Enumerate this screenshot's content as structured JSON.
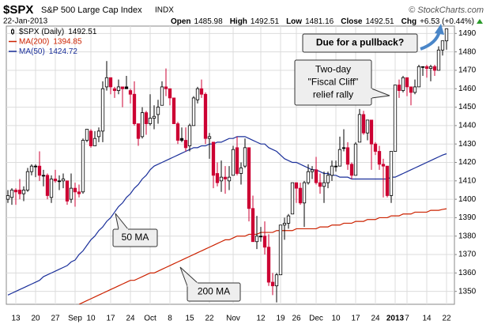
{
  "chart_data": {
    "type": "candlestick",
    "title": "$SPX",
    "subtitle": "S&P 500 Large Cap Index",
    "exchange": "INDX",
    "source": "© StockCharts.com",
    "date": "22-Jan-2013",
    "stats": [
      {
        "label": "Open",
        "value": 1485.98
      },
      {
        "label": "High",
        "value": 1492.51
      },
      {
        "label": "Low",
        "value": 1481.16
      },
      {
        "label": "Close",
        "value": 1492.51
      },
      {
        "label": "Chg",
        "value": "+6.53 (+0.44%)"
      }
    ],
    "up_color": "#000000",
    "down_color": "#cc0033",
    "grid": true,
    "ylim": [
      1343,
      1494
    ],
    "yticks": [
      1350,
      1360,
      1370,
      1380,
      1390,
      1400,
      1410,
      1420,
      1430,
      1440,
      1450,
      1460,
      1470,
      1480,
      1490
    ],
    "categories": [
      null,
      null,
      "13",
      null,
      null,
      null,
      null,
      "20",
      null,
      null,
      null,
      null,
      "27",
      null,
      null,
      null,
      null,
      "Sep",
      null,
      null,
      null,
      "10",
      null,
      null,
      null,
      null,
      "17",
      null,
      null,
      null,
      null,
      "24",
      null,
      null,
      null,
      null,
      "Oct",
      null,
      null,
      null,
      null,
      "8",
      null,
      null,
      null,
      null,
      "15",
      null,
      null,
      null,
      null,
      "22",
      null,
      null,
      null,
      null,
      null,
      "Nov",
      null,
      null,
      null,
      null,
      null,
      null,
      "12",
      null,
      null,
      null,
      null,
      "19",
      null,
      null,
      null,
      "26",
      null,
      null,
      null,
      null,
      "Dec",
      null,
      null,
      null,
      null,
      "10",
      null,
      null,
      null,
      null,
      "17",
      null,
      null,
      null,
      null,
      "24",
      null,
      null,
      null,
      null,
      "2013",
      null,
      null,
      "7",
      null,
      null,
      null,
      null,
      "14",
      null,
      null,
      null,
      null,
      "22"
    ],
    "series": [
      {
        "name": "$SPX (Daily)",
        "last": 1492.51,
        "open": [
          1400,
          1401,
          1405,
          1405,
          1403,
          1405,
          1415,
          1418,
          1418,
          1413,
          1413,
          1401,
          1411,
          1410,
          1410,
          1410,
          1400,
          1406,
          1404,
          1404,
          1432,
          1437,
          1429,
          1434,
          1437,
          1461,
          1466,
          1460,
          1459,
          1461,
          1461,
          1459,
          1457,
          1441,
          1434,
          1447,
          1441,
          1444,
          1446,
          1451,
          1461,
          1460,
          1455,
          1441,
          1433,
          1432,
          1429,
          1440,
          1454,
          1460,
          1457,
          1433,
          1431,
          1414,
          1410,
          1412,
          1410,
          1413,
          1428,
          1414,
          1418,
          1428,
          1395,
          1377,
          1380,
          1380,
          1374,
          1355,
          1353,
          1359,
          1386,
          1387,
          1392,
          1409,
          1406,
          1398,
          1409,
          1415,
          1416,
          1409,
          1407,
          1409,
          1413,
          1418,
          1418,
          1428,
          1428,
          1419,
          1413,
          1431,
          1446,
          1436,
          1443,
          1430,
          1426,
          1419,
          1418,
          1402,
          1426,
          1462,
          1459,
          1466,
          1461,
          1458,
          1461,
          1472,
          1472,
          1471,
          1472,
          1470,
          1481,
          1485.98
        ],
        "high": [
          1405,
          1406,
          1406,
          1411,
          1407,
          1417,
          1419,
          1419,
          1426,
          1416,
          1414,
          1413,
          1416,
          1413,
          1414,
          1410,
          1414,
          1409,
          1408,
          1433,
          1438,
          1438,
          1437,
          1439,
          1464,
          1475,
          1466,
          1461,
          1465,
          1461,
          1467,
          1460,
          1464,
          1441,
          1450,
          1448,
          1457,
          1451,
          1454,
          1464,
          1471,
          1460,
          1455,
          1442,
          1439,
          1439,
          1441,
          1456,
          1461,
          1465,
          1458,
          1436,
          1431,
          1420,
          1421,
          1418,
          1418,
          1429,
          1434,
          1420,
          1433,
          1428,
          1402,
          1391,
          1385,
          1388,
          1381,
          1360,
          1360,
          1386,
          1390,
          1392,
          1409,
          1409,
          1409,
          1410,
          1419,
          1418,
          1423,
          1414,
          1415,
          1415,
          1421,
          1421,
          1434,
          1438,
          1431,
          1420,
          1431,
          1449,
          1448,
          1443,
          1443,
          1431,
          1429,
          1422,
          1418,
          1426,
          1462,
          1465,
          1467,
          1466,
          1461,
          1465,
          1473,
          1472,
          1473,
          1473,
          1473,
          1483,
          1486,
          1492.51
        ],
        "low": [
          1398,
          1397,
          1397,
          1400,
          1399,
          1404,
          1413,
          1412,
          1410,
          1407,
          1400,
          1398,
          1409,
          1405,
          1406,
          1397,
          1398,
          1396,
          1401,
          1403,
          1431,
          1428,
          1429,
          1431,
          1431,
          1459,
          1457,
          1455,
          1457,
          1450,
          1460,
          1452,
          1440,
          1429,
          1433,
          1435,
          1440,
          1438,
          1441,
          1451,
          1456,
          1451,
          1441,
          1430,
          1431,
          1426,
          1426,
          1440,
          1452,
          1455,
          1430,
          1422,
          1406,
          1407,
          1404,
          1403,
          1405,
          1413,
          1413,
          1408,
          1417,
          1388,
          1377,
          1373,
          1377,
          1370,
          1353,
          1348,
          1344,
          1359,
          1378,
          1384,
          1392,
          1398,
          1397,
          1385,
          1408,
          1411,
          1408,
          1403,
          1398,
          1406,
          1410,
          1415,
          1418,
          1426,
          1416,
          1411,
          1413,
          1431,
          1435,
          1432,
          1416,
          1424,
          1416,
          1401,
          1401,
          1398,
          1426,
          1455,
          1458,
          1456,
          1451,
          1457,
          1461,
          1467,
          1466,
          1464,
          1467,
          1470,
          1478,
          1481.16
        ],
        "close": [
          1402,
          1405,
          1404,
          1403,
          1405,
          1415,
          1418,
          1418,
          1413,
          1413,
          1402,
          1411,
          1410,
          1410,
          1411,
          1399,
          1406,
          1404,
          1403,
          1432,
          1438,
          1429,
          1433,
          1437,
          1460,
          1466,
          1461,
          1459,
          1461,
          1460,
          1460,
          1457,
          1441,
          1433,
          1447,
          1441,
          1444,
          1445,
          1450,
          1461,
          1460,
          1455,
          1441,
          1432,
          1432,
          1428,
          1440,
          1455,
          1460,
          1457,
          1433,
          1434,
          1413,
          1409,
          1412,
          1411,
          1412,
          1427,
          1414,
          1417,
          1428,
          1395,
          1377,
          1380,
          1380,
          1374,
          1355,
          1353,
          1359,
          1386,
          1387,
          1391,
          1409,
          1406,
          1398,
          1409,
          1415,
          1416,
          1409,
          1407,
          1409,
          1413,
          1418,
          1418,
          1427,
          1428,
          1419,
          1413,
          1430,
          1446,
          1436,
          1443,
          1430,
          1426,
          1419,
          1418,
          1402,
          1426,
          1462,
          1459,
          1466,
          1461,
          1458,
          1461,
          1472,
          1472,
          1471,
          1472,
          1470,
          1481,
          1486,
          1492.51
        ]
      },
      {
        "name": "MA(200)",
        "last": 1394.85,
        "color": "#cc2200",
        "values": [
          null,
          null,
          null,
          null,
          null,
          null,
          null,
          null,
          null,
          null,
          null,
          null,
          null,
          null,
          null,
          null,
          null,
          null,
          1343,
          1344,
          1345,
          1346,
          1347,
          1348,
          1349,
          1350,
          1351,
          1352,
          1353,
          1354,
          1355,
          1356,
          1356,
          1357,
          1358,
          1359,
          1360,
          1360,
          1361,
          1362,
          1363,
          1364,
          1365,
          1366,
          1367,
          1368,
          1369,
          1370,
          1371,
          1372,
          1373,
          1374,
          1375,
          1376,
          1377,
          1378,
          1378,
          1379,
          1380,
          1380,
          1380,
          1381,
          1381,
          1381,
          1382,
          1382,
          1382,
          1382,
          1383,
          1383,
          1383,
          1383,
          1383,
          1384,
          1384,
          1384,
          1384,
          1384,
          1384,
          1385,
          1385,
          1385,
          1386,
          1386,
          1386,
          1387,
          1387,
          1387,
          1388,
          1388,
          1388,
          1389,
          1389,
          1389,
          1390,
          1390,
          1390,
          1391,
          1391,
          1391,
          1392,
          1392,
          1392,
          1393,
          1393,
          1393,
          1393,
          1394,
          1394,
          1394,
          1394.5,
          1394.85
        ]
      },
      {
        "name": "MA(50)",
        "last": 1424.72,
        "color": "#1a2f9a",
        "values": [
          1348,
          1349,
          1350,
          1351,
          1352,
          1353,
          1354,
          1355,
          1356,
          1358,
          1359,
          1360,
          1361,
          1362,
          1363,
          1364,
          1366,
          1367,
          1370,
          1372,
          1375,
          1378,
          1380,
          1383,
          1385,
          1388,
          1390,
          1393,
          1396,
          1398,
          1401,
          1403,
          1406,
          1408,
          1411,
          1413,
          1416,
          1418,
          1419,
          1420,
          1421,
          1422,
          1423,
          1424,
          1425,
          1426,
          1427,
          1428,
          1428,
          1429,
          1429,
          1430,
          1430,
          1431,
          1431,
          1432,
          1433,
          1433,
          1434,
          1434,
          1434,
          1433,
          1432,
          1431,
          1430,
          1430,
          1428,
          1427,
          1426,
          1424,
          1422,
          1421,
          1420,
          1420,
          1419,
          1418,
          1417,
          1416,
          1416,
          1415,
          1414,
          1414,
          1413,
          1413,
          1412,
          1412,
          1412,
          1411,
          1411,
          1411,
          1411,
          1411,
          1411,
          1411,
          1411,
          1411,
          1411,
          1412,
          1412,
          1413,
          1414,
          1415,
          1416,
          1417,
          1418,
          1419,
          1420,
          1421,
          1422,
          1423,
          1424,
          1424.72
        ]
      }
    ],
    "annotations": [
      {
        "lines": [
          "Due for a pullback?"
        ]
      },
      {
        "lines": [
          "Two-day",
          "\"Fiscal Cliff\"",
          "relief rally"
        ]
      },
      {
        "lines": [
          "50 MA"
        ]
      },
      {
        "lines": [
          "200 MA"
        ]
      }
    ]
  }
}
